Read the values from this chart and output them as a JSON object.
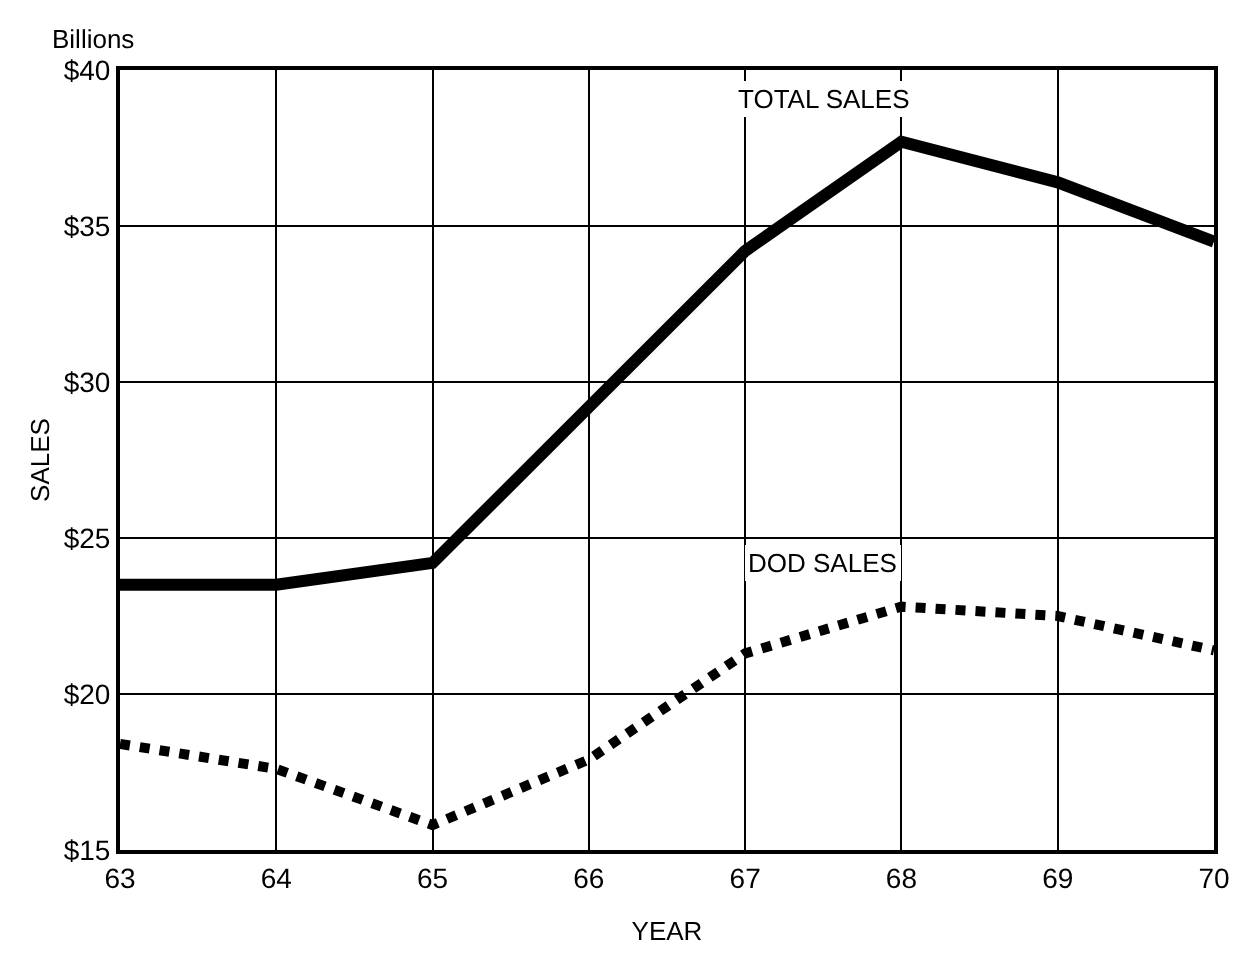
{
  "chart_data": {
    "type": "line",
    "xlabel": "YEAR",
    "ylabel": "SALES",
    "annotations": [
      "Billions"
    ],
    "x": [
      63,
      64,
      65,
      66,
      67,
      68,
      69,
      70
    ],
    "series": [
      {
        "name": "TOTAL SALES",
        "color": "#000000",
        "line_style": "solid",
        "values": [
          23.5,
          23.5,
          24.2,
          29.2,
          34.2,
          37.7,
          36.4,
          34.5
        ]
      },
      {
        "name": "DOD SALES",
        "color": "#000000",
        "line_style": "dotted",
        "values": [
          18.4,
          17.6,
          15.8,
          17.9,
          21.3,
          22.8,
          22.5,
          21.4
        ]
      }
    ],
    "xlim": [
      63,
      70
    ],
    "xticks": [
      63,
      64,
      65,
      66,
      67,
      68,
      69,
      70
    ],
    "ylim": [
      15,
      40
    ],
    "yticks": [
      {
        "value": 15,
        "label": "$15"
      },
      {
        "value": 20,
        "label": "$20"
      },
      {
        "value": 25,
        "label": "$25"
      },
      {
        "value": 30,
        "label": "$30"
      },
      {
        "value": 35,
        "label": "$35"
      },
      {
        "value": 40,
        "label": "$40"
      }
    ],
    "grid": true,
    "legend": false,
    "marker": "none"
  }
}
